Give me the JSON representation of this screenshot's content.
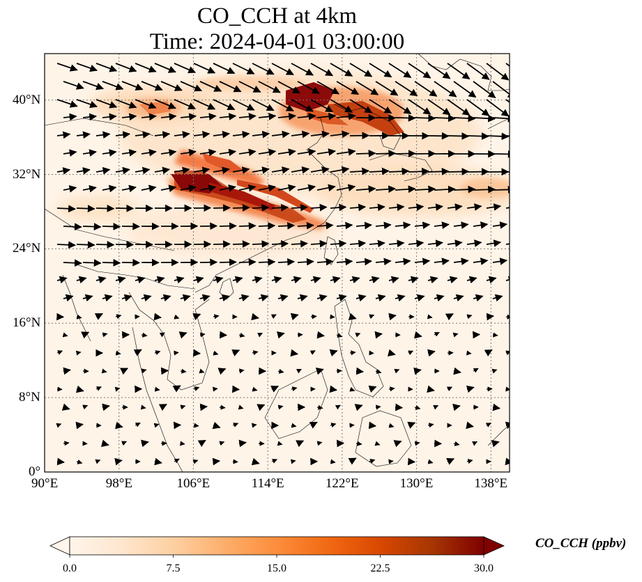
{
  "title": {
    "line1": "CO_CCH at 4km",
    "line2": "Time: 2024-04-01 03:00:00"
  },
  "map": {
    "lon_range": [
      90,
      140
    ],
    "lat_range": [
      0,
      45
    ],
    "lon_ticks": [
      {
        "value": 90,
        "label": "90°E"
      },
      {
        "value": 98,
        "label": "98°E"
      },
      {
        "value": 106,
        "label": "106°E"
      },
      {
        "value": 114,
        "label": "114°E"
      },
      {
        "value": 122,
        "label": "122°E"
      },
      {
        "value": 130,
        "label": "130°E"
      },
      {
        "value": 138,
        "label": "138°E"
      }
    ],
    "lat_ticks": [
      {
        "value": 0,
        "label": "0°"
      },
      {
        "value": 8,
        "label": "8°N"
      },
      {
        "value": 16,
        "label": "16°N"
      },
      {
        "value": 24,
        "label": "24°N"
      },
      {
        "value": 32,
        "label": "32°N"
      },
      {
        "value": 40,
        "label": "40°N"
      }
    ],
    "gridlines": true
  },
  "colorbar": {
    "label": "CO_CCH (ppbv)",
    "min": 0,
    "max": 30,
    "ticks": [
      {
        "value": 0,
        "label": "0.0"
      },
      {
        "value": 7.5,
        "label": "7.5"
      },
      {
        "value": 15,
        "label": "15.0"
      },
      {
        "value": 22.5,
        "label": "22.5"
      },
      {
        "value": 30,
        "label": "30.0"
      }
    ],
    "colormap": [
      "#fff5eb",
      "#fee6ce",
      "#fdd0a2",
      "#fdae6b",
      "#fd8d3c",
      "#f16913",
      "#d94801",
      "#a63603",
      "#7f0000"
    ],
    "extend": "both"
  }
}
